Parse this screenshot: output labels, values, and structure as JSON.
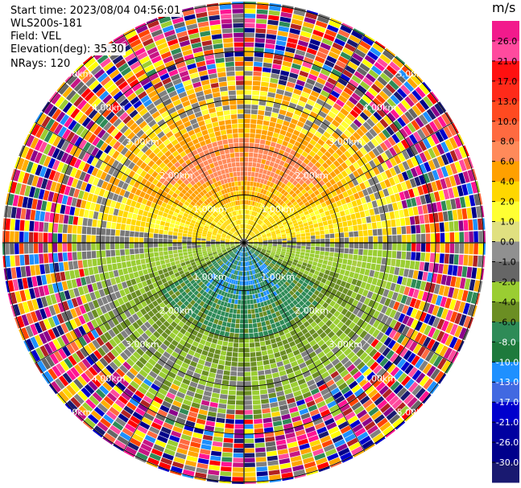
{
  "header": {
    "start_time": "Start time: 2023/08/04 04:56:01",
    "station": "WLS200s-181",
    "field": "Field: VEL",
    "elevation": "Elevation(deg): 35.30",
    "nrays": "NRays: 120"
  },
  "colorbar": {
    "unit": "m/s",
    "ticks": [
      "26.0",
      "21.0",
      "17.0",
      "13.0",
      "10.0",
      "8.0",
      "6.0",
      "4.0",
      "2.0",
      "1.0",
      "0.0",
      "-1.0",
      "-2.0",
      "-4.0",
      "-6.0",
      "-8.0",
      "-10.0",
      "-13.0",
      "-17.0",
      "-21.0",
      "-26.0",
      "-30.0"
    ],
    "colors": [
      "#f21a8c",
      "#ff4a9e",
      "#ff1010",
      "#ff2a1a",
      "#ff4a20",
      "#ff6a40",
      "#ff8a5a",
      "#ffa000",
      "#ffd700",
      "#ffff33",
      "#e0e080",
      "#909090",
      "#666666",
      "#9acd32",
      "#6b8e23",
      "#2e8b57",
      "#1e7a3c",
      "#1e90ff",
      "#4169e1",
      "#0000cd",
      "#0000a0",
      "#00008b",
      "#191970"
    ]
  },
  "chart_data": {
    "type": "ppi",
    "field": "VEL",
    "units": "m/s",
    "range_rings_km": [
      1,
      2,
      3,
      4,
      5
    ],
    "ring_labels": [
      "1.00km",
      "2.00km",
      "3.00km",
      "4.00km",
      "5.00km"
    ],
    "nrays": 120,
    "elevation_deg": 35.3,
    "velocity_range": [
      -30,
      26
    ]
  }
}
